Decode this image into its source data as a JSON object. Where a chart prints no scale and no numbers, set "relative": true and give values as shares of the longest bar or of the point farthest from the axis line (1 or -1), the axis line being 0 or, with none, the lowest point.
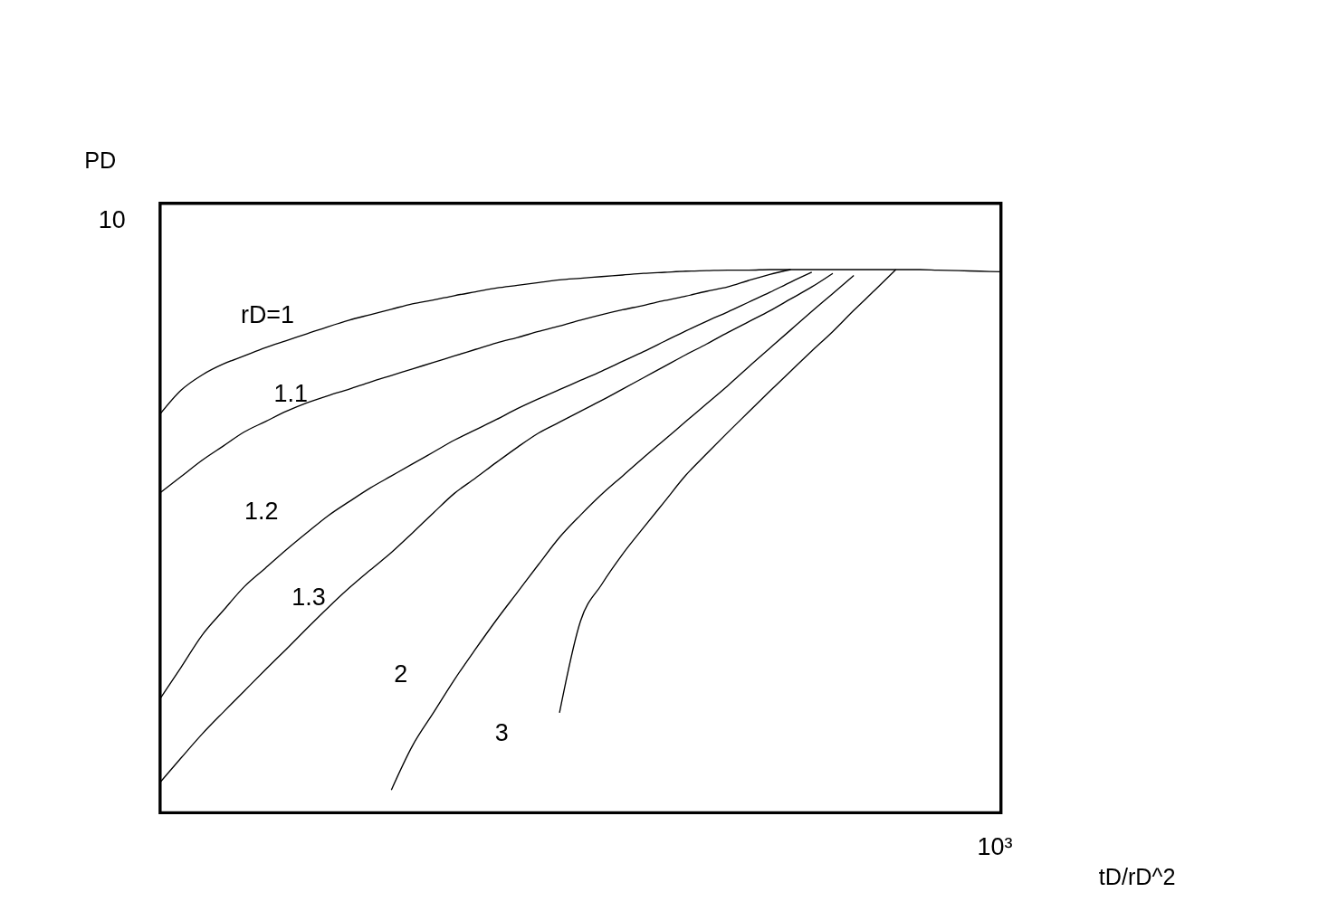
{
  "chart_data": {
    "type": "line",
    "relative": true,
    "xlabel": "tD/rD^2",
    "ylabel": "PD",
    "categories": [
      null,
      null,
      null,
      null,
      null,
      null,
      null,
      null,
      null,
      null,
      null,
      null,
      null,
      null,
      null,
      null,
      null,
      null,
      null,
      null,
      null,
      null,
      null,
      null,
      null,
      null,
      null,
      null,
      null,
      null,
      null,
      null,
      null,
      null,
      null,
      null,
      null,
      null,
      null,
      null,
      null
    ],
    "series": [
      {
        "name": "rD=1",
        "color": "#000000",
        "values": [
          0.734,
          0.778,
          0.806,
          0.826,
          0.841,
          0.856,
          0.869,
          0.882,
          0.895,
          0.907,
          0.917,
          0.927,
          0.937,
          0.944,
          0.952,
          0.959,
          0.966,
          0.971,
          0.976,
          0.981,
          0.984,
          0.987,
          0.99,
          0.993,
          0.995,
          0.997,
          0.998,
          0.999,
          0.999,
          1,
          1,
          1,
          1,
          1,
          1,
          1,
          1,
          0.999,
          0.998,
          0.997,
          0.996
        ]
      },
      {
        "name": "1.1",
        "color": "#000000",
        "values": [
          0.589,
          0.619,
          0.649,
          0.675,
          0.701,
          0.72,
          0.739,
          0.755,
          0.768,
          0.78,
          0.793,
          0.805,
          0.817,
          0.829,
          0.841,
          0.853,
          0.865,
          0.875,
          0.886,
          0.896,
          0.907,
          0.917,
          0.926,
          0.934,
          0.943,
          0.951,
          0.96,
          0.968,
          0.98,
          0.991,
          1,
          null,
          null,
          null,
          null,
          null,
          null,
          null,
          null,
          null,
          null
        ]
      },
      {
        "name": "1.2",
        "color": "#000000",
        "values": [
          0.21,
          0.268,
          0.327,
          0.372,
          0.416,
          0.45,
          0.484,
          0.516,
          0.547,
          0.573,
          0.598,
          0.62,
          0.642,
          0.664,
          0.686,
          0.705,
          0.724,
          0.744,
          0.762,
          0.779,
          0.796,
          0.813,
          0.831,
          0.849,
          0.868,
          0.887,
          0.905,
          0.922,
          0.94,
          0.958,
          0.977,
          0.995,
          null,
          null,
          null,
          null,
          null,
          null,
          null,
          null,
          null
        ]
      },
      {
        "name": "1.3",
        "color": "#000000",
        "values": [
          0.056,
          0.101,
          0.145,
          0.185,
          0.224,
          0.263,
          0.301,
          0.34,
          0.378,
          0.414,
          0.447,
          0.479,
          0.515,
          0.552,
          0.588,
          0.616,
          0.645,
          0.673,
          0.699,
          0.719,
          0.739,
          0.759,
          0.78,
          0.801,
          0.822,
          0.843,
          0.863,
          0.884,
          0.904,
          0.924,
          0.946,
          0.968,
          0.993,
          null,
          null,
          null,
          null,
          null,
          null,
          null,
          null
        ]
      },
      {
        "name": "2",
        "color": "#000000",
        "values": [
          null,
          null,
          null,
          null,
          null,
          null,
          null,
          null,
          null,
          null,
          null,
          0.042,
          0.123,
          0.184,
          0.245,
          0.301,
          0.355,
          0.406,
          0.457,
          0.507,
          0.548,
          0.586,
          0.62,
          0.654,
          0.687,
          0.72,
          0.753,
          0.786,
          0.821,
          0.855,
          0.889,
          0.923,
          0.956,
          0.989,
          null,
          null,
          null,
          null,
          null,
          null,
          null
        ]
      },
      {
        "name": "3",
        "color": "#000000",
        "values": [
          null,
          null,
          null,
          null,
          null,
          null,
          null,
          null,
          null,
          null,
          null,
          null,
          null,
          null,
          null,
          null,
          null,
          null,
          null,
          0.184,
          0.353,
          0.42,
          0.476,
          0.525,
          0.573,
          0.621,
          0.661,
          0.7,
          0.738,
          0.776,
          0.813,
          0.85,
          0.886,
          0.925,
          0.962,
          1,
          null,
          null,
          null,
          null,
          null
        ]
      }
    ],
    "annotations": [
      "10",
      "10³"
    ],
    "grid": false,
    "marker": "none",
    "line_style": "solid"
  }
}
